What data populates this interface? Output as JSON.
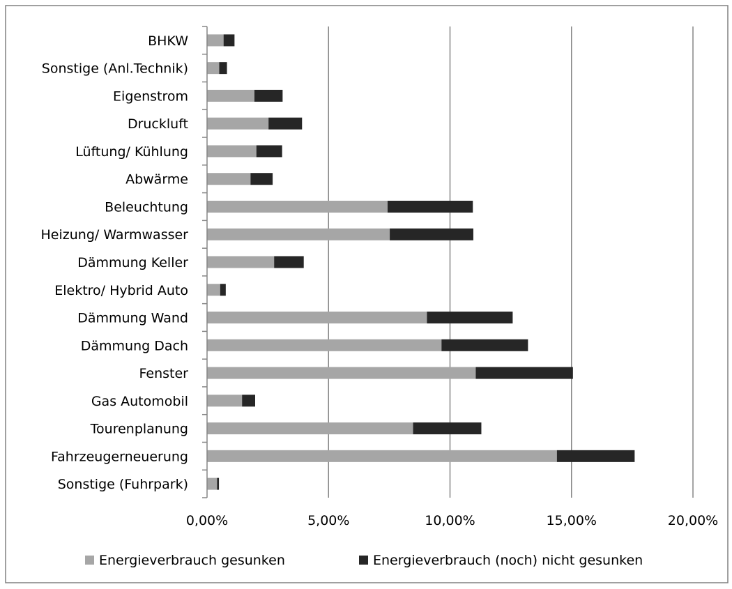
{
  "chart_data": {
    "type": "bar",
    "orientation": "horizontal",
    "stacked": true,
    "title": "",
    "xlabel": "",
    "ylabel": "",
    "xlim": [
      0,
      0.2
    ],
    "xticks": [
      "0,00%",
      "5,00%",
      "10,00%",
      "15,00%",
      "20,00%"
    ],
    "grid": "vertical",
    "legend_position": "bottom",
    "categories": [
      "BHKW",
      "Sonstige (Anl.Technik)",
      "Eigenstrom",
      "Druckluft",
      "Lüftung/ Kühlung",
      "Abwärme",
      "Beleuchtung",
      "Heizung/ Warmwasser",
      "Dämmung Keller",
      "Elektro/ Hybrid Auto",
      "Dämmung Wand",
      "Dämmung Dach",
      "Fenster",
      "Gas Automobil",
      "Tourenplanung",
      "Fahrzeugerneuerung",
      "Sonstige (Fuhrpark)"
    ],
    "series": [
      {
        "name": "Energieverbrauch gesunken",
        "color": "#a6a6a6",
        "values": [
          0.0068,
          0.005,
          0.0195,
          0.0253,
          0.0203,
          0.0179,
          0.0743,
          0.0752,
          0.0276,
          0.0054,
          0.0905,
          0.0965,
          0.1106,
          0.0144,
          0.0848,
          0.144,
          0.0041
        ]
      },
      {
        "name": "Energieverbrauch (noch) nicht gesunken",
        "color": "#262626",
        "values": [
          0.0045,
          0.0032,
          0.0116,
          0.0138,
          0.0106,
          0.0091,
          0.0351,
          0.0344,
          0.0122,
          0.0023,
          0.0353,
          0.0356,
          0.04,
          0.0054,
          0.0281,
          0.032,
          0.0008
        ]
      }
    ]
  }
}
